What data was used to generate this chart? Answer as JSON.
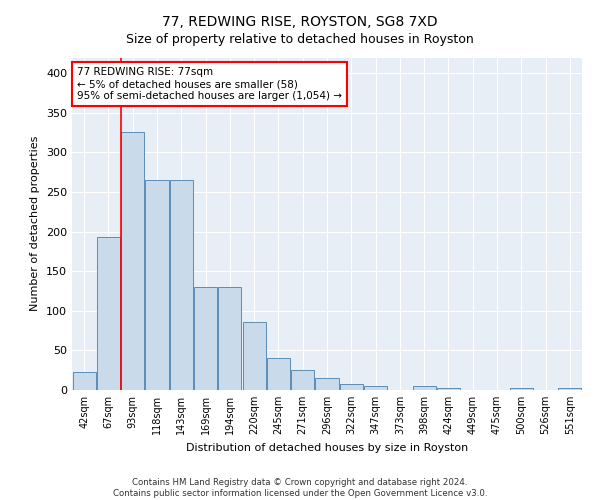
{
  "title": "77, REDWING RISE, ROYSTON, SG8 7XD",
  "subtitle": "Size of property relative to detached houses in Royston",
  "xlabel": "Distribution of detached houses by size in Royston",
  "ylabel": "Number of detached properties",
  "bar_color": "#c9daea",
  "bar_edge_color": "#5b8db8",
  "background_color": "#e8eef5",
  "grid_color": "#ffffff",
  "fig_background": "#ffffff",
  "categories": [
    "42sqm",
    "67sqm",
    "93sqm",
    "118sqm",
    "143sqm",
    "169sqm",
    "194sqm",
    "220sqm",
    "245sqm",
    "271sqm",
    "296sqm",
    "322sqm",
    "347sqm",
    "373sqm",
    "398sqm",
    "424sqm",
    "449sqm",
    "475sqm",
    "500sqm",
    "526sqm",
    "551sqm"
  ],
  "values": [
    23,
    193,
    326,
    265,
    265,
    130,
    130,
    86,
    40,
    25,
    15,
    7,
    5,
    0,
    5,
    3,
    0,
    0,
    3,
    0,
    3
  ],
  "ylim": [
    0,
    420
  ],
  "yticks": [
    0,
    50,
    100,
    150,
    200,
    250,
    300,
    350,
    400
  ],
  "red_line_index": 1,
  "annotation_box_text": "77 REDWING RISE: 77sqm\n← 5% of detached houses are smaller (58)\n95% of semi-detached houses are larger (1,054) →",
  "footer_line1": "Contains HM Land Registry data © Crown copyright and database right 2024.",
  "footer_line2": "Contains public sector information licensed under the Open Government Licence v3.0."
}
